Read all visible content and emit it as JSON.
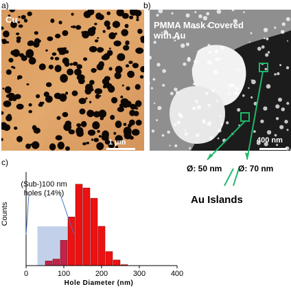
{
  "panel_a": {
    "label": "a)",
    "title": "Cu",
    "scalebar": "1 µm"
  },
  "panel_b": {
    "label": "b)",
    "title_line1": "PMMA Mask Covered",
    "title_line2": "with Au",
    "scalebar": "400 nm",
    "diam_left": "Ø: 50 nm",
    "diam_right": "Ø: 70 nm",
    "islands_label": "Au Islands",
    "callout_color": "#1fb86a"
  },
  "panel_c": {
    "label": "c)",
    "annotation_line1": "(Sub-)100 nm",
    "annotation_line2": "holes (14%)",
    "highlight_color": "#b8c8e6"
  },
  "chart_data": {
    "type": "bar",
    "xlabel": "Hole Diameter (nm)",
    "ylabel": "Counts",
    "xlim": [
      0,
      400
    ],
    "ylim": [
      0,
      1
    ],
    "xticks": [
      0,
      100,
      200,
      300,
      400
    ],
    "bar_color": "#ee1111",
    "bin_width": 20,
    "x": [
      60,
      80,
      100,
      120,
      140,
      160,
      180,
      200,
      220,
      240,
      260
    ],
    "values": [
      0.05,
      0.07,
      0.27,
      0.52,
      0.87,
      0.83,
      0.72,
      0.42,
      0.15,
      0.06,
      0.01
    ]
  }
}
